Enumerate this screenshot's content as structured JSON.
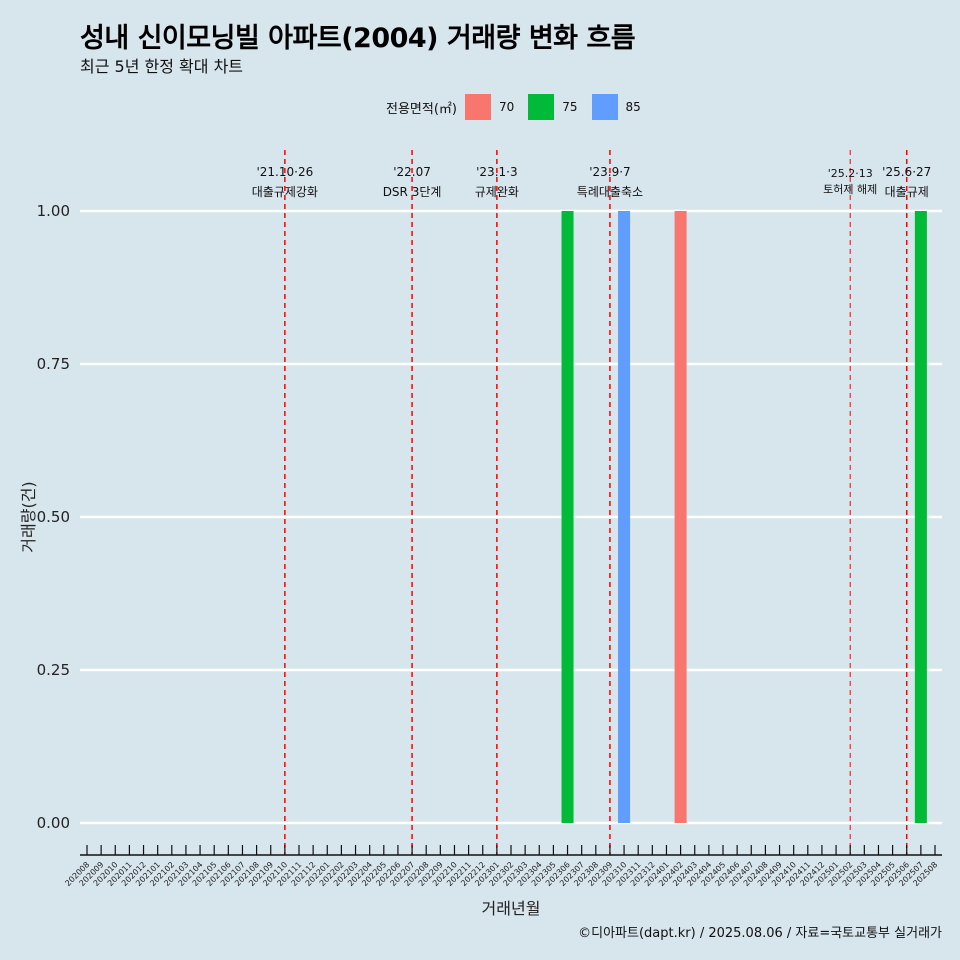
{
  "header": {
    "title": "성내 신이모닝빌 아파트(2004) 거래량 변화 흐름",
    "subtitle": "최근 5년 한정 확대 차트"
  },
  "legend": {
    "title": "전용면적(㎡)",
    "items": [
      {
        "label": "70",
        "color": "#F8766D"
      },
      {
        "label": "75",
        "color": "#00BA38"
      },
      {
        "label": "85",
        "color": "#619CFF"
      }
    ]
  },
  "caption": "©디아파트(dapt.kr) / 2025.08.06 / 자료=국토교통부 실거래가",
  "chart_data": {
    "type": "bar",
    "title": "성내 신이모닝빌 아파트(2004) 거래량 변화 흐름",
    "xlabel": "거래년월",
    "ylabel": "거래량(건)",
    "ylim": [
      0,
      1
    ],
    "yticks": [
      "0.00",
      "0.25",
      "0.50",
      "0.75",
      "1.00"
    ],
    "categories": [
      "202008",
      "202009",
      "202010",
      "202011",
      "202012",
      "202101",
      "202102",
      "202103",
      "202104",
      "202105",
      "202106",
      "202107",
      "202108",
      "202109",
      "202110",
      "202111",
      "202112",
      "202201",
      "202202",
      "202203",
      "202204",
      "202205",
      "202206",
      "202207",
      "202208",
      "202209",
      "202210",
      "202211",
      "202212",
      "202301",
      "202302",
      "202303",
      "202304",
      "202305",
      "202306",
      "202307",
      "202308",
      "202309",
      "202310",
      "202311",
      "202312",
      "202401",
      "202402",
      "202403",
      "202404",
      "202405",
      "202406",
      "202407",
      "202408",
      "202409",
      "202410",
      "202411",
      "202412",
      "202501",
      "202502",
      "202503",
      "202504",
      "202505",
      "202506",
      "202507",
      "202508"
    ],
    "series": [
      {
        "name": "70",
        "color": "#F8766D",
        "points": [
          {
            "x": "202402",
            "y": 1
          }
        ]
      },
      {
        "name": "75",
        "color": "#00BA38",
        "points": [
          {
            "x": "202306",
            "y": 1
          },
          {
            "x": "202507",
            "y": 1
          }
        ]
      },
      {
        "name": "85",
        "color": "#619CFF",
        "points": [
          {
            "x": "202310",
            "y": 1
          }
        ]
      }
    ],
    "events": [
      {
        "date": "'21.10·26",
        "label": "대출규제강화",
        "x": "202110",
        "style": "normal"
      },
      {
        "date": "'22.07",
        "label": "DSR 3단계",
        "x": "202207",
        "style": "normal"
      },
      {
        "date": "'23.1·3",
        "label": "규제완화",
        "x": "202301",
        "style": "normal"
      },
      {
        "date": "'23.9·7",
        "label": "특례대출축소",
        "x": "202309",
        "style": "normal"
      },
      {
        "date": "'25.2·13",
        "label": "토허제 해제",
        "x": "202502",
        "style": "small"
      },
      {
        "date": "'25.6·27",
        "label": "대출규제",
        "x": "202506",
        "style": "normal"
      }
    ]
  }
}
